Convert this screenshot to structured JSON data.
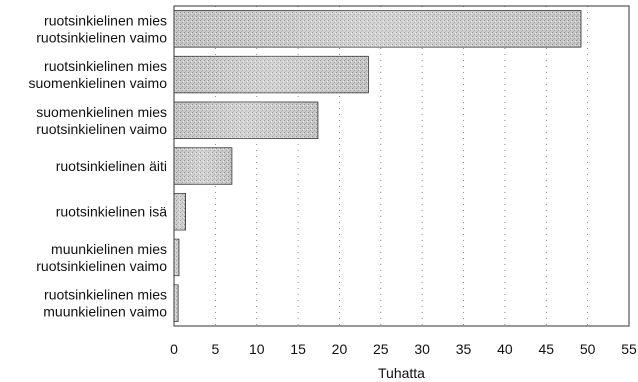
{
  "chart_data": {
    "type": "bar",
    "orientation": "horizontal",
    "categories": [
      [
        "ruotsinkielinen mies",
        "ruotsinkielinen vaimo"
      ],
      [
        "ruotsinkielinen mies",
        "suomenkielinen vaimo"
      ],
      [
        "suomenkielinen mies",
        "ruotsinkielinen vaimo"
      ],
      [
        "ruotsinkielinen äiti"
      ],
      [
        "ruotsinkielinen isä"
      ],
      [
        "muunkielinen mies",
        "ruotsinkielinen vaimo"
      ],
      [
        "ruotsinkielinen mies",
        "muunkielinen vaimo"
      ]
    ],
    "values": [
      49.2,
      23.5,
      17.4,
      7.0,
      1.4,
      0.6,
      0.5
    ],
    "xlabel": "Tuhatta",
    "xlim": [
      0,
      55
    ],
    "xticks": [
      0,
      5,
      10,
      15,
      20,
      25,
      30,
      35,
      40,
      45,
      50,
      55
    ],
    "grid": "vertical-dotted",
    "legend": "none",
    "bar_color": "#c2c2c2",
    "bar_color_dark": "#9a9a9a"
  }
}
